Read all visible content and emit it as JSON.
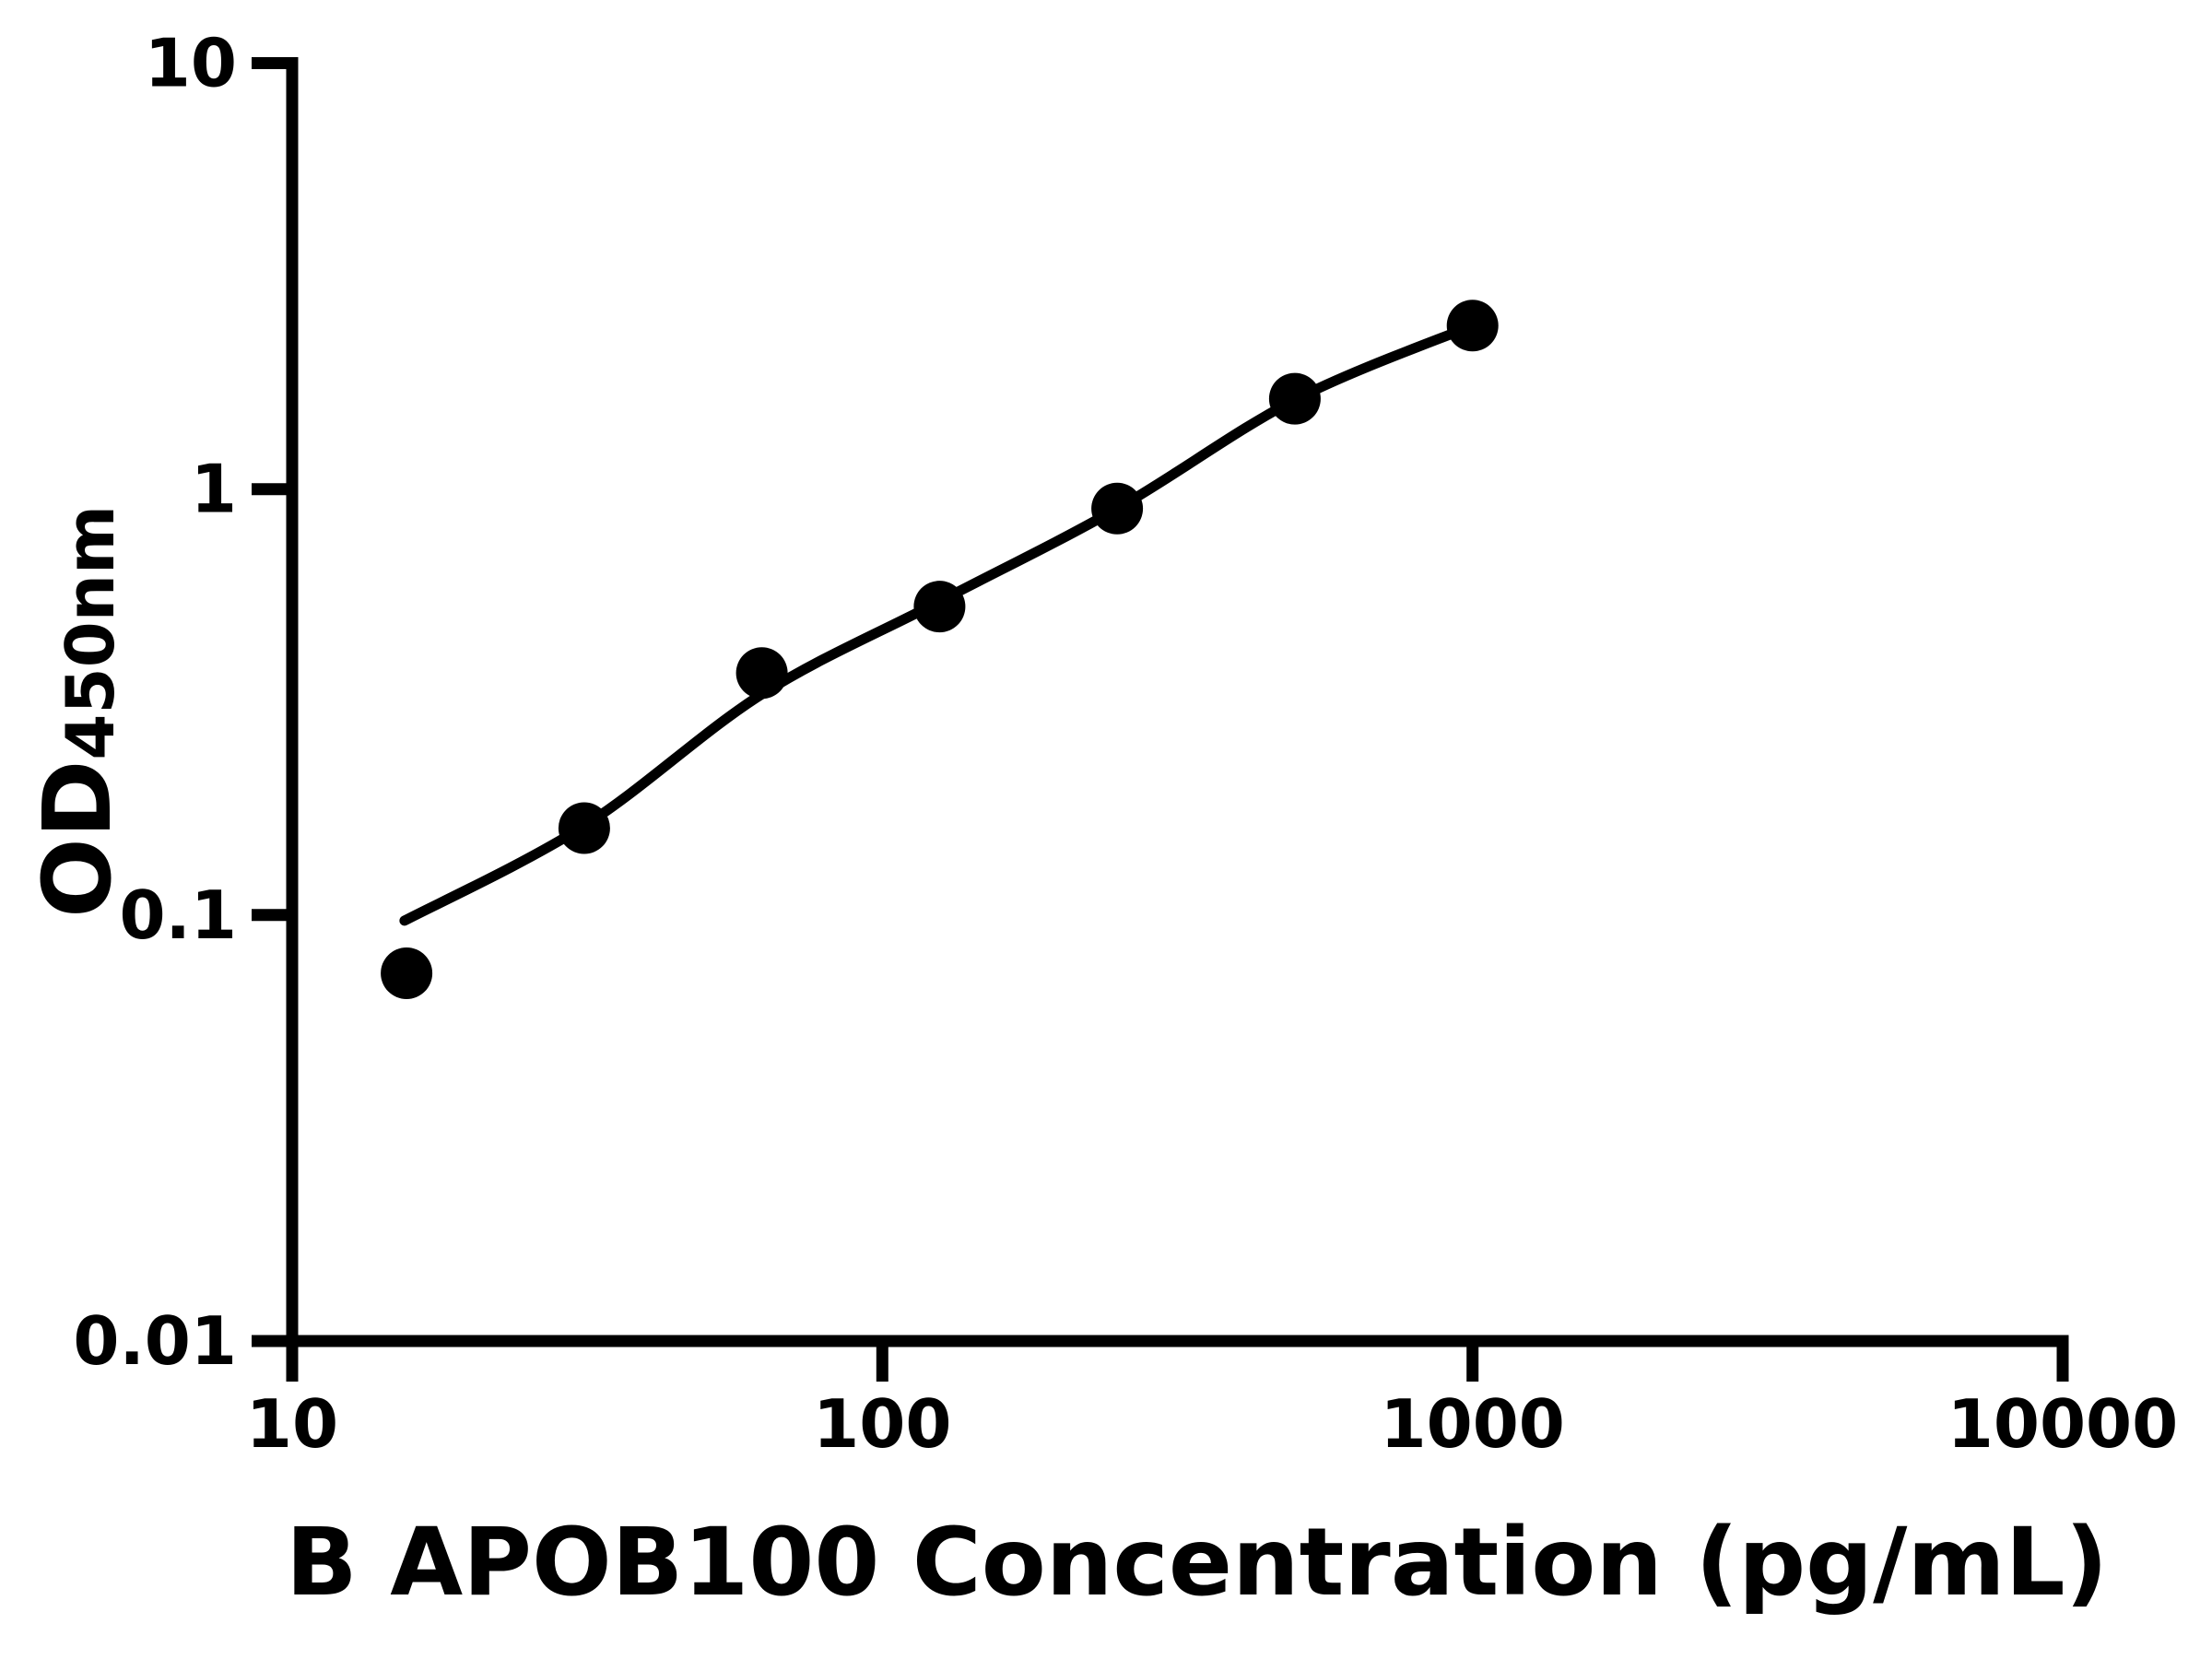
{
  "chart_data": {
    "type": "scatter",
    "title": "",
    "xlabel": "B APOB100 Concentration (pg/mL)",
    "ylabel_main": "OD",
    "ylabel_sub": "450nm",
    "x_scale": "log",
    "y_scale": "log",
    "xlim": [
      10,
      10000
    ],
    "ylim": [
      0.01,
      10
    ],
    "x_ticks": [
      {
        "value": 10,
        "label": "10"
      },
      {
        "value": 100,
        "label": "100"
      },
      {
        "value": 1000,
        "label": "1000"
      },
      {
        "value": 10000,
        "label": "10000"
      }
    ],
    "y_ticks": [
      {
        "value": 0.01,
        "label": "0.01"
      },
      {
        "value": 0.1,
        "label": "0.1"
      },
      {
        "value": 1,
        "label": "1"
      },
      {
        "value": 10,
        "label": "10"
      }
    ],
    "points": [
      {
        "x": 15.625,
        "y": 0.073
      },
      {
        "x": 31.25,
        "y": 0.16
      },
      {
        "x": 62.5,
        "y": 0.37
      },
      {
        "x": 125,
        "y": 0.53
      },
      {
        "x": 250,
        "y": 0.9
      },
      {
        "x": 500,
        "y": 1.63
      },
      {
        "x": 1000,
        "y": 2.42
      }
    ],
    "fit_curve": [
      {
        "x": 15.5,
        "y": 0.097
      },
      {
        "x": 31.25,
        "y": 0.162
      },
      {
        "x": 62.5,
        "y": 0.33
      },
      {
        "x": 125,
        "y": 0.545
      },
      {
        "x": 250,
        "y": 0.9
      },
      {
        "x": 500,
        "y": 1.62
      },
      {
        "x": 1000,
        "y": 2.42
      }
    ],
    "legend": null,
    "grid": false,
    "colors": {
      "axis": "#000000",
      "text": "#000000",
      "marker": "#000000",
      "curve": "#000000",
      "background": "#ffffff"
    }
  }
}
